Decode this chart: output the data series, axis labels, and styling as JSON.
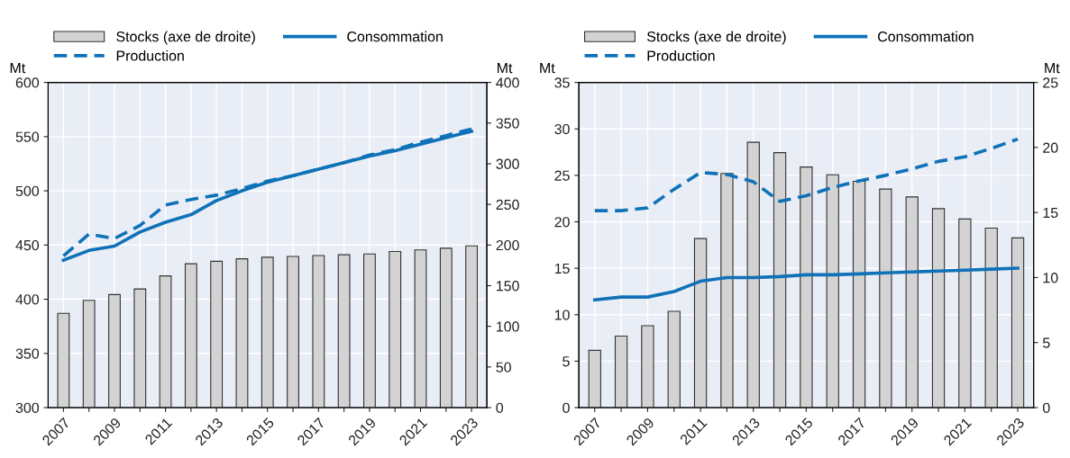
{
  "chart_data": [
    {
      "type": "line",
      "categories": [
        "2007",
        null,
        "2009",
        null,
        "2011",
        null,
        "2013",
        null,
        "2015",
        null,
        "2017",
        null,
        "2019",
        null,
        "2021",
        null,
        "2023"
      ],
      "ylabel": "Mt",
      "y2label": "Mt",
      "ylim": [
        300,
        600
      ],
      "yticks": [
        300,
        350,
        400,
        450,
        500,
        550,
        600
      ],
      "y2lim": [
        0,
        400
      ],
      "y2ticks": [
        0,
        50,
        100,
        150,
        200,
        250,
        300,
        350,
        400
      ],
      "grid": true,
      "legend": "top",
      "series": [
        {
          "name": "Stocks (axe de droite)",
          "type": "bar",
          "axis": "y2",
          "color": "#d3d3d3",
          "values": [
            116,
            132,
            139,
            146,
            162,
            177,
            180,
            183,
            185,
            186,
            187,
            188,
            189,
            192,
            194,
            196,
            199
          ]
        },
        {
          "name": "Consommation",
          "line_style": "solid",
          "color": "#0f72b8",
          "values": [
            436,
            445,
            449,
            462,
            471,
            478,
            491,
            500,
            508,
            514,
            520,
            526,
            532,
            537,
            543,
            549,
            555
          ]
        },
        {
          "name": "Production",
          "line_style": "dashed",
          "color": "#0f72b8",
          "values": [
            440,
            460,
            456,
            468,
            487,
            492,
            496,
            502,
            509,
            514,
            520,
            526,
            533,
            538,
            545,
            551,
            557
          ]
        }
      ]
    },
    {
      "type": "line",
      "categories": [
        "2007",
        null,
        "2009",
        null,
        "2011",
        null,
        "2013",
        null,
        "2015",
        null,
        "2017",
        null,
        "2019",
        null,
        "2021",
        null,
        "2023"
      ],
      "ylabel": "Mt",
      "y2label": "Mt",
      "ylim": [
        0,
        35
      ],
      "yticks": [
        0,
        5,
        10,
        15,
        20,
        25,
        30,
        35
      ],
      "y2lim": [
        0,
        25
      ],
      "y2ticks": [
        0,
        5,
        10,
        15,
        20,
        25
      ],
      "grid": true,
      "legend": "top",
      "series": [
        {
          "name": "Stocks (axe de droite)",
          "type": "bar",
          "axis": "y2",
          "color": "#d3d3d3",
          "values": [
            4.4,
            5.5,
            6.3,
            7.4,
            13.0,
            18.0,
            20.4,
            19.6,
            18.5,
            17.9,
            17.4,
            16.8,
            16.2,
            15.3,
            14.5,
            13.8,
            13.05
          ]
        },
        {
          "name": "Consommation",
          "line_style": "solid",
          "color": "#0f72b8",
          "values": [
            11.6,
            11.9,
            11.9,
            12.5,
            13.6,
            14.0,
            14.0,
            14.1,
            14.3,
            14.3,
            14.4,
            14.5,
            14.6,
            14.7,
            14.8,
            14.9,
            15.0
          ]
        },
        {
          "name": "Production",
          "line_style": "dashed",
          "color": "#0f72b8",
          "values": [
            21.2,
            21.2,
            21.5,
            23.5,
            25.3,
            25.1,
            24.3,
            22.2,
            22.8,
            23.7,
            24.4,
            25.0,
            25.7,
            26.5,
            27.0,
            27.9,
            28.9
          ]
        }
      ]
    }
  ]
}
